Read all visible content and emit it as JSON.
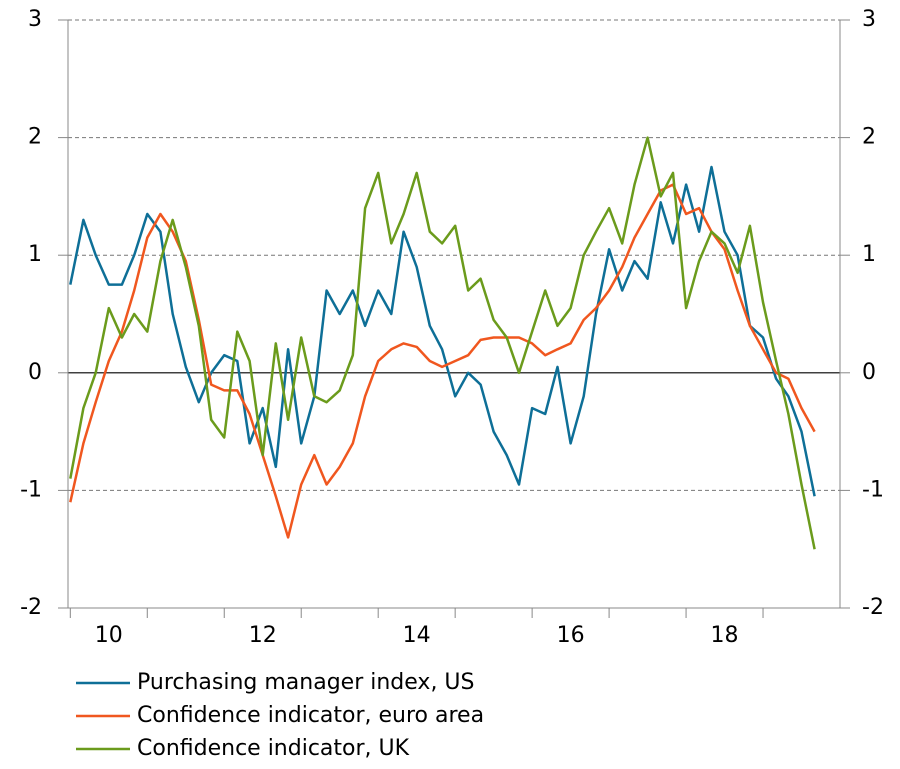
{
  "chart_data": {
    "type": "line",
    "x": [
      10,
      10.17,
      10.33,
      10.5,
      10.67,
      10.83,
      11,
      11.17,
      11.33,
      11.5,
      11.67,
      11.83,
      12,
      12.17,
      12.33,
      12.5,
      12.67,
      12.83,
      13,
      13.17,
      13.33,
      13.5,
      13.67,
      13.83,
      14,
      14.17,
      14.33,
      14.5,
      14.67,
      14.83,
      15,
      15.17,
      15.33,
      15.5,
      15.67,
      15.83,
      16,
      16.17,
      16.33,
      16.5,
      16.67,
      16.83,
      17,
      17.17,
      17.33,
      17.5,
      17.67,
      17.83,
      18,
      18.17,
      18.33,
      18.5,
      18.67,
      18.83,
      19,
      19.17,
      19.33,
      19.5,
      19.67
    ],
    "series": [
      {
        "name": "Purchasing manager index, US",
        "color": "#0e6f97",
        "values": [
          0.75,
          1.3,
          1.0,
          0.75,
          0.75,
          1.0,
          1.35,
          1.2,
          0.5,
          0.05,
          -0.25,
          0.0,
          0.15,
          0.1,
          -0.6,
          -0.3,
          -0.8,
          0.2,
          -0.6,
          -0.2,
          0.7,
          0.5,
          0.7,
          0.4,
          0.7,
          0.5,
          1.2,
          0.9,
          0.4,
          0.2,
          -0.2,
          0.0,
          -0.1,
          -0.5,
          -0.7,
          -0.95,
          -0.3,
          -0.35,
          0.05,
          -0.6,
          -0.2,
          0.5,
          1.05,
          0.7,
          0.95,
          0.8,
          1.45,
          1.1,
          1.6,
          1.2,
          1.75,
          1.2,
          1.0,
          0.4,
          0.3,
          -0.05,
          -0.2,
          -0.5,
          -1.05
        ]
      },
      {
        "name": "Confidence indicator, euro area",
        "color": "#f0571f",
        "values": [
          -1.1,
          -0.6,
          -0.25,
          0.1,
          0.35,
          0.7,
          1.15,
          1.35,
          1.2,
          0.95,
          0.45,
          -0.1,
          -0.15,
          -0.15,
          -0.35,
          -0.7,
          -1.05,
          -1.4,
          -0.95,
          -0.7,
          -0.95,
          -0.8,
          -0.6,
          -0.2,
          0.1,
          0.2,
          0.25,
          0.22,
          0.1,
          0.05,
          0.1,
          0.15,
          0.28,
          0.3,
          0.3,
          0.3,
          0.25,
          0.15,
          0.2,
          0.25,
          0.45,
          0.55,
          0.7,
          0.9,
          1.15,
          1.35,
          1.55,
          1.6,
          1.35,
          1.4,
          1.2,
          1.05,
          0.7,
          0.4,
          0.2,
          0.0,
          -0.05,
          -0.3,
          -0.5
        ]
      },
      {
        "name": "Confidence indicator, UK",
        "color": "#6b9b1c",
        "values": [
          -0.9,
          -0.3,
          0.0,
          0.55,
          0.3,
          0.5,
          0.35,
          0.95,
          1.3,
          0.9,
          0.4,
          -0.4,
          -0.55,
          0.35,
          0.1,
          -0.7,
          0.25,
          -0.4,
          0.3,
          -0.2,
          -0.25,
          -0.15,
          0.15,
          1.4,
          1.7,
          1.1,
          1.35,
          1.7,
          1.2,
          1.1,
          1.25,
          0.7,
          0.8,
          0.45,
          0.3,
          0.0,
          0.35,
          0.7,
          0.4,
          0.55,
          1.0,
          1.2,
          1.4,
          1.1,
          1.6,
          2.0,
          1.5,
          1.7,
          0.55,
          0.95,
          1.2,
          1.1,
          0.85,
          1.25,
          0.6,
          0.1,
          -0.35,
          -0.95,
          -1.5
        ]
      }
    ],
    "xlim": [
      9.97,
      20.0
    ],
    "xticks": [
      {
        "value": 10.5,
        "label": "10"
      },
      {
        "value": 12.5,
        "label": "12"
      },
      {
        "value": 14.5,
        "label": "14"
      },
      {
        "value": 16.5,
        "label": "16"
      },
      {
        "value": 18.5,
        "label": "18"
      }
    ],
    "xminor_ticks": [
      10,
      11,
      12,
      13,
      14,
      15,
      16,
      17,
      18,
      19
    ],
    "ylim": [
      -2,
      3
    ],
    "yticks": [
      -2,
      -1,
      0,
      1,
      2,
      3
    ],
    "y2lim": [
      -2,
      3
    ],
    "y2ticks": [
      -2,
      -1,
      0,
      1,
      2,
      3
    ],
    "grid": true,
    "zero_line": true
  }
}
